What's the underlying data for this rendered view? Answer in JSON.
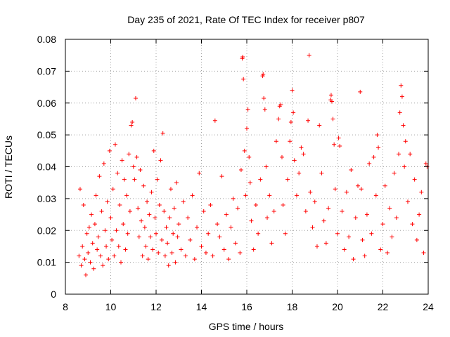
{
  "chart_data": {
    "type": "scatter",
    "title": "Day 235 of 2021, Rate Of TEC Index for receiver p807",
    "xlabel": "GPS time / hours",
    "ylabel": "ROTI / TECUs",
    "xlim": [
      8,
      24
    ],
    "ylim": [
      0,
      0.08
    ],
    "xticks": [
      "8",
      "10",
      "12",
      "14",
      "16",
      "18",
      "20",
      "22",
      "24"
    ],
    "yticks": [
      "0",
      "0.01",
      "0.02",
      "0.03",
      "0.04",
      "0.05",
      "0.06",
      "0.07",
      "0.08"
    ],
    "grid": true,
    "marker": "+",
    "color": "#ff0000",
    "series": [
      {
        "points": [
          [
            8.6,
            0.012
          ],
          [
            8.65,
            0.033
          ],
          [
            8.7,
            0.009
          ],
          [
            8.75,
            0.015
          ],
          [
            8.8,
            0.028
          ],
          [
            8.85,
            0.011
          ],
          [
            8.9,
            0.006
          ],
          [
            8.95,
            0.019
          ],
          [
            9.0,
            0.013
          ],
          [
            9.05,
            0.021
          ],
          [
            9.1,
            0.01
          ],
          [
            9.15,
            0.025
          ],
          [
            9.2,
            0.016
          ],
          [
            9.25,
            0.008
          ],
          [
            9.3,
            0.022
          ],
          [
            9.35,
            0.031
          ],
          [
            9.4,
            0.014
          ],
          [
            9.45,
            0.018
          ],
          [
            9.5,
            0.037
          ],
          [
            9.55,
            0.012
          ],
          [
            9.6,
            0.026
          ],
          [
            9.65,
            0.009
          ],
          [
            9.7,
            0.041
          ],
          [
            9.75,
            0.02
          ],
          [
            9.8,
            0.015
          ],
          [
            9.85,
            0.029
          ],
          [
            9.9,
            0.011
          ],
          [
            9.95,
            0.045
          ],
          [
            10.0,
            0.024
          ],
          [
            10.05,
            0.017
          ],
          [
            10.1,
            0.033
          ],
          [
            10.15,
            0.012
          ],
          [
            10.2,
            0.047
          ],
          [
            10.25,
            0.02
          ],
          [
            10.3,
            0.038
          ],
          [
            10.35,
            0.015
          ],
          [
            10.4,
            0.028
          ],
          [
            10.45,
            0.01
          ],
          [
            10.5,
            0.042
          ],
          [
            10.55,
            0.022
          ],
          [
            10.6,
            0.036
          ],
          [
            10.65,
            0.014
          ],
          [
            10.7,
            0.031
          ],
          [
            10.75,
            0.019
          ],
          [
            10.8,
            0.044
          ],
          [
            10.85,
            0.026
          ],
          [
            10.9,
            0.053
          ],
          [
            10.95,
            0.054
          ],
          [
            11.0,
            0.04
          ],
          [
            11.05,
            0.036
          ],
          [
            11.1,
            0.0615
          ],
          [
            11.15,
            0.043
          ],
          [
            11.2,
            0.027
          ],
          [
            11.25,
            0.018
          ],
          [
            11.3,
            0.039
          ],
          [
            11.35,
            0.023
          ],
          [
            11.4,
            0.012
          ],
          [
            11.45,
            0.034
          ],
          [
            11.5,
            0.021
          ],
          [
            11.55,
            0.015
          ],
          [
            11.6,
            0.029
          ],
          [
            11.65,
            0.011
          ],
          [
            11.7,
            0.025
          ],
          [
            11.75,
            0.018
          ],
          [
            11.8,
            0.032
          ],
          [
            11.85,
            0.014
          ],
          [
            11.9,
            0.045
          ],
          [
            11.95,
            0.024
          ],
          [
            12.0,
            0.019
          ],
          [
            12.05,
            0.036
          ],
          [
            12.1,
            0.013
          ],
          [
            12.15,
            0.028
          ],
          [
            12.2,
            0.042
          ],
          [
            12.25,
            0.017
          ],
          [
            12.3,
            0.0505
          ],
          [
            12.35,
            0.026
          ],
          [
            12.4,
            0.012
          ],
          [
            12.45,
            0.021
          ],
          [
            12.5,
            0.016
          ],
          [
            12.55,
            0.009
          ],
          [
            12.6,
            0.024
          ],
          [
            12.65,
            0.033
          ],
          [
            12.7,
            0.013
          ],
          [
            12.75,
            0.019
          ],
          [
            12.8,
            0.027
          ],
          [
            12.85,
            0.01
          ],
          [
            12.9,
            0.035
          ],
          [
            12.95,
            0.018
          ],
          [
            13.0,
            0.022
          ],
          [
            13.1,
            0.014
          ],
          [
            13.2,
            0.029
          ],
          [
            13.3,
            0.012
          ],
          [
            13.4,
            0.024
          ],
          [
            13.5,
            0.017
          ],
          [
            13.6,
            0.031
          ],
          [
            13.7,
            0.011
          ],
          [
            13.8,
            0.021
          ],
          [
            13.9,
            0.038
          ],
          [
            14.0,
            0.015
          ],
          [
            14.1,
            0.026
          ],
          [
            14.2,
            0.013
          ],
          [
            14.3,
            0.019
          ],
          [
            14.4,
            0.028
          ],
          [
            14.5,
            0.012
          ],
          [
            14.6,
            0.0545
          ],
          [
            14.7,
            0.022
          ],
          [
            14.8,
            0.018
          ],
          [
            14.9,
            0.037
          ],
          [
            15.0,
            0.014
          ],
          [
            15.1,
            0.025
          ],
          [
            15.2,
            0.011
          ],
          [
            15.3,
            0.021
          ],
          [
            15.4,
            0.03
          ],
          [
            15.5,
            0.016
          ],
          [
            15.6,
            0.027
          ],
          [
            15.7,
            0.013
          ],
          [
            15.75,
            0.039
          ],
          [
            15.8,
            0.074
          ],
          [
            15.82,
            0.0745
          ],
          [
            15.85,
            0.0675
          ],
          [
            15.9,
            0.045
          ],
          [
            15.95,
            0.031
          ],
          [
            16.0,
            0.052
          ],
          [
            16.05,
            0.058
          ],
          [
            16.1,
            0.043
          ],
          [
            16.15,
            0.035
          ],
          [
            16.2,
            0.023
          ],
          [
            16.3,
            0.014
          ],
          [
            16.4,
            0.028
          ],
          [
            16.5,
            0.019
          ],
          [
            16.6,
            0.036
          ],
          [
            16.7,
            0.0685
          ],
          [
            16.72,
            0.069
          ],
          [
            16.75,
            0.0615
          ],
          [
            16.8,
            0.058
          ],
          [
            16.85,
            0.04
          ],
          [
            16.9,
            0.024
          ],
          [
            17.0,
            0.031
          ],
          [
            17.1,
            0.016
          ],
          [
            17.2,
            0.026
          ],
          [
            17.3,
            0.048
          ],
          [
            17.4,
            0.055
          ],
          [
            17.45,
            0.059
          ],
          [
            17.5,
            0.0595
          ],
          [
            17.55,
            0.043
          ],
          [
            17.6,
            0.028
          ],
          [
            17.7,
            0.019
          ],
          [
            17.8,
            0.036
          ],
          [
            17.9,
            0.048
          ],
          [
            17.95,
            0.054
          ],
          [
            18.0,
            0.064
          ],
          [
            18.05,
            0.057
          ],
          [
            18.1,
            0.042
          ],
          [
            18.2,
            0.031
          ],
          [
            18.3,
            0.038
          ],
          [
            18.4,
            0.046
          ],
          [
            18.5,
            0.044
          ],
          [
            18.6,
            0.026
          ],
          [
            18.7,
            0.0545
          ],
          [
            18.75,
            0.075
          ],
          [
            18.8,
            0.032
          ],
          [
            18.9,
            0.021
          ],
          [
            19.0,
            0.029
          ],
          [
            19.1,
            0.015
          ],
          [
            19.2,
            0.053
          ],
          [
            19.3,
            0.038
          ],
          [
            19.4,
            0.023
          ],
          [
            19.5,
            0.016
          ],
          [
            19.6,
            0.027
          ],
          [
            19.7,
            0.061
          ],
          [
            19.72,
            0.0625
          ],
          [
            19.75,
            0.0605
          ],
          [
            19.8,
            0.055
          ],
          [
            19.85,
            0.047
          ],
          [
            19.9,
            0.033
          ],
          [
            20.0,
            0.019
          ],
          [
            20.05,
            0.049
          ],
          [
            20.1,
            0.0465
          ],
          [
            20.2,
            0.026
          ],
          [
            20.3,
            0.014
          ],
          [
            20.4,
            0.032
          ],
          [
            20.5,
            0.018
          ],
          [
            20.6,
            0.039
          ],
          [
            20.7,
            0.011
          ],
          [
            20.8,
            0.024
          ],
          [
            20.9,
            0.034
          ],
          [
            21.0,
            0.0635
          ],
          [
            21.05,
            0.033
          ],
          [
            21.1,
            0.017
          ],
          [
            21.2,
            0.012
          ],
          [
            21.3,
            0.025
          ],
          [
            21.4,
            0.041
          ],
          [
            21.5,
            0.019
          ],
          [
            21.6,
            0.043
          ],
          [
            21.7,
            0.031
          ],
          [
            21.75,
            0.05
          ],
          [
            21.8,
            0.046
          ],
          [
            21.9,
            0.014
          ],
          [
            22.0,
            0.022
          ],
          [
            22.1,
            0.034
          ],
          [
            22.2,
            0.013
          ],
          [
            22.3,
            0.027
          ],
          [
            22.4,
            0.018
          ],
          [
            22.5,
            0.038
          ],
          [
            22.6,
            0.024
          ],
          [
            22.7,
            0.044
          ],
          [
            22.75,
            0.057
          ],
          [
            22.8,
            0.0655
          ],
          [
            22.85,
            0.062
          ],
          [
            22.9,
            0.053
          ],
          [
            22.95,
            0.04
          ],
          [
            23.0,
            0.048
          ],
          [
            23.1,
            0.029
          ],
          [
            23.2,
            0.044
          ],
          [
            23.3,
            0.022
          ],
          [
            23.4,
            0.036
          ],
          [
            23.5,
            0.017
          ],
          [
            23.6,
            0.025
          ],
          [
            23.7,
            0.032
          ],
          [
            23.8,
            0.013
          ],
          [
            23.9,
            0.041
          ],
          [
            23.95,
            0.04
          ]
        ]
      }
    ]
  }
}
